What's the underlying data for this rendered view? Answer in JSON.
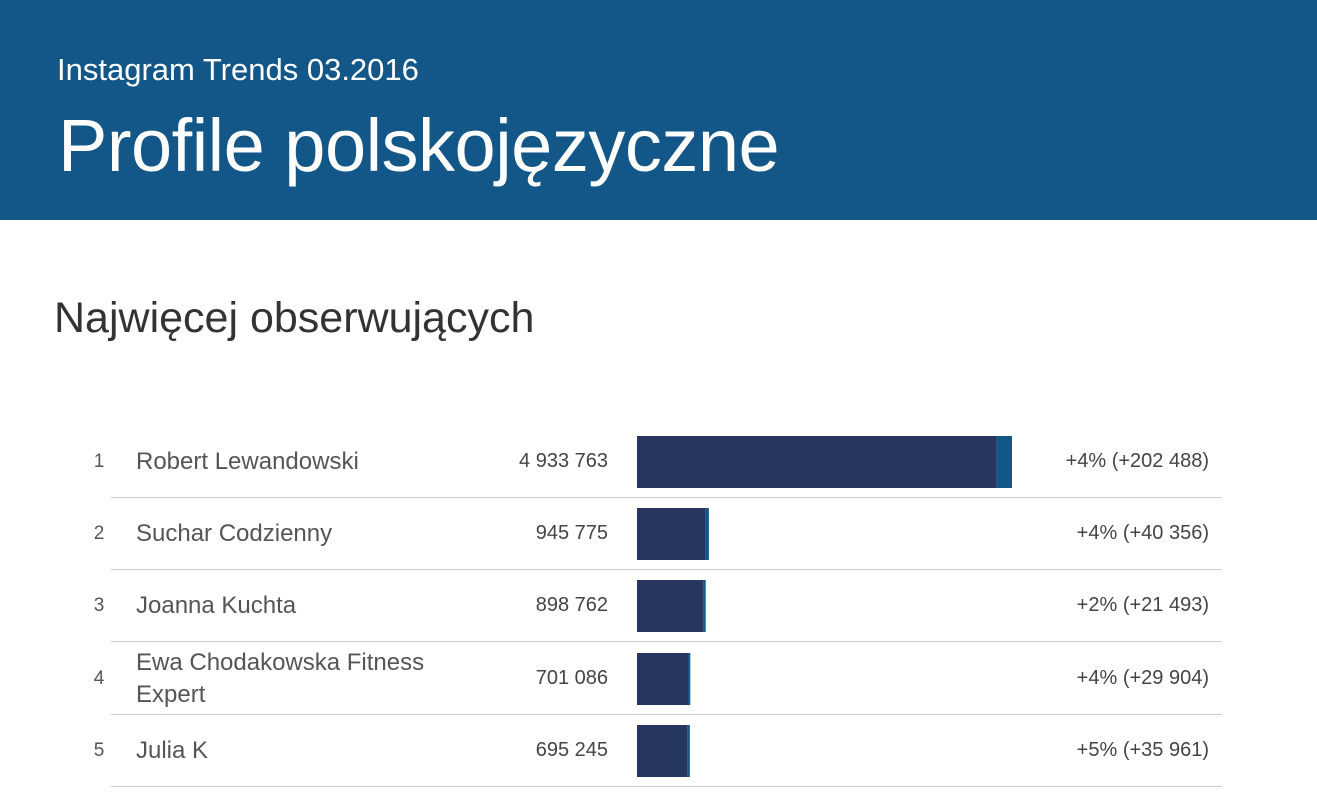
{
  "header": {
    "subtitle": "Instagram Trends 03.2016",
    "title": "Profile polskojęzyczne"
  },
  "section": {
    "title": "Najwięcej obserwujących"
  },
  "colors": {
    "header_bg": "#135688",
    "bar_base": "#26365f",
    "bar_growth": "#135688"
  },
  "chart_data": {
    "type": "bar",
    "orientation": "horizontal",
    "categories": [
      "Robert Lewandowski",
      "Suchar Codzienny",
      "Joanna Kuchta",
      "Ewa Chodakowska Fitness Expert",
      "Julia K"
    ],
    "ranks": [
      "1",
      "2",
      "3",
      "4",
      "5"
    ],
    "values": [
      4933763,
      945775,
      898762,
      701086,
      695245
    ],
    "value_labels": [
      "4 933 763",
      "945 775",
      "898 762",
      "701 086",
      "695 245"
    ],
    "growth": [
      202488,
      40356,
      21493,
      29904,
      35961
    ],
    "change_labels": [
      "+4% (+202 488)",
      "+4% (+40 356)",
      "+2% (+21 493)",
      "+4% (+29 904)",
      "+5% (+35 961)"
    ],
    "series": [
      {
        "values": [
          4731275,
          905419,
          877269,
          671182,
          659284
        ]
      },
      {
        "values": [
          202488,
          40356,
          21493,
          29904,
          35961
        ]
      }
    ],
    "xlim": [
      0,
      4933763
    ],
    "grid": false
  }
}
